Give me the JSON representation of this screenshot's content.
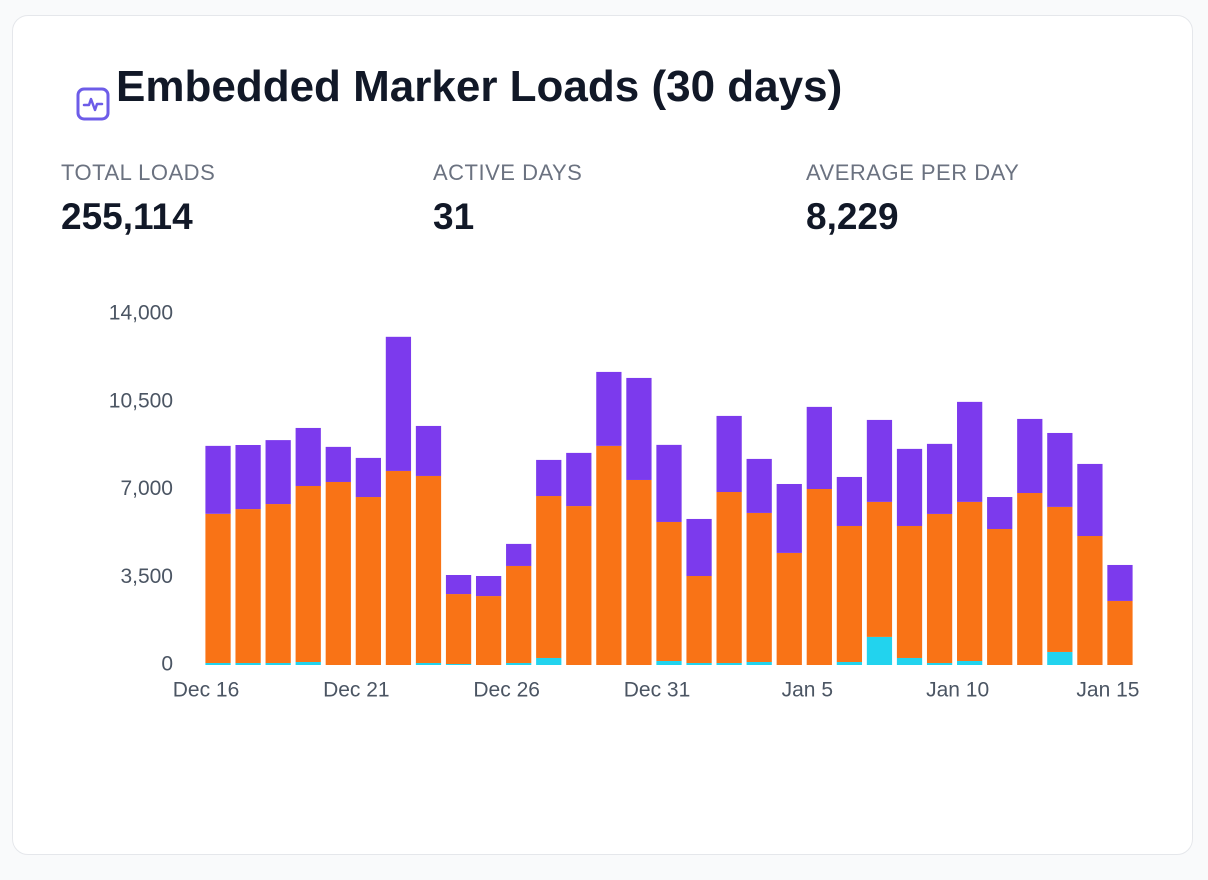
{
  "header": {
    "title": "Embedded Marker Loads (30 days)"
  },
  "stats": [
    {
      "label": "TOTAL LOADS",
      "value": "255,114"
    },
    {
      "label": "ACTIVE DAYS",
      "value": "31"
    },
    {
      "label": "AVERAGE PER DAY",
      "value": "8,229"
    }
  ],
  "chart_data": {
    "type": "stacked-bar",
    "categories": [
      "Dec 16",
      null,
      null,
      null,
      null,
      "Dec 21",
      null,
      null,
      null,
      null,
      "Dec 26",
      null,
      null,
      null,
      null,
      "Dec 31",
      null,
      null,
      null,
      null,
      "Jan 5",
      null,
      null,
      null,
      null,
      "Jan 10",
      null,
      null,
      null,
      null,
      "Jan 15"
    ],
    "series": [
      {
        "color": "#22d3ee",
        "values": [
          80,
          80,
          80,
          120,
          0,
          0,
          0,
          80,
          40,
          0,
          80,
          280,
          0,
          0,
          0,
          160,
          80,
          80,
          120,
          0,
          0,
          120,
          1120,
          280,
          80,
          160,
          0,
          0,
          520,
          0,
          0
        ]
      },
      {
        "color": "#f97316",
        "values": [
          5950,
          6140,
          6340,
          7020,
          7300,
          6700,
          7740,
          7460,
          2790,
          2750,
          3870,
          6460,
          6340,
          8740,
          7380,
          5545,
          3470,
          6820,
          5945,
          4470,
          7020,
          5425,
          5385,
          5265,
          5945,
          6345,
          5425,
          6860,
          5785,
          5145,
          2555
        ]
      },
      {
        "color": "#7c3aed",
        "values": [
          2710,
          2555,
          2550,
          2315,
          1400,
          1560,
          5350,
          1995,
          760,
          800,
          880,
          1440,
          2120,
          2950,
          4070,
          3075,
          2275,
          3035,
          2155,
          2750,
          3275,
          1955,
          3270,
          3075,
          2795,
          3990,
          1275,
          2955,
          2950,
          2875,
          1435
        ]
      }
    ],
    "ylim": [
      0,
      14000
    ],
    "yticks": [
      0,
      {
        "value": 3500,
        "label": "3,500"
      },
      {
        "value": 7000,
        "label": "7,000"
      },
      {
        "value": 10500,
        "label": "10,500"
      },
      {
        "value": 14000,
        "label": "14,000"
      }
    ],
    "grid": false
  }
}
